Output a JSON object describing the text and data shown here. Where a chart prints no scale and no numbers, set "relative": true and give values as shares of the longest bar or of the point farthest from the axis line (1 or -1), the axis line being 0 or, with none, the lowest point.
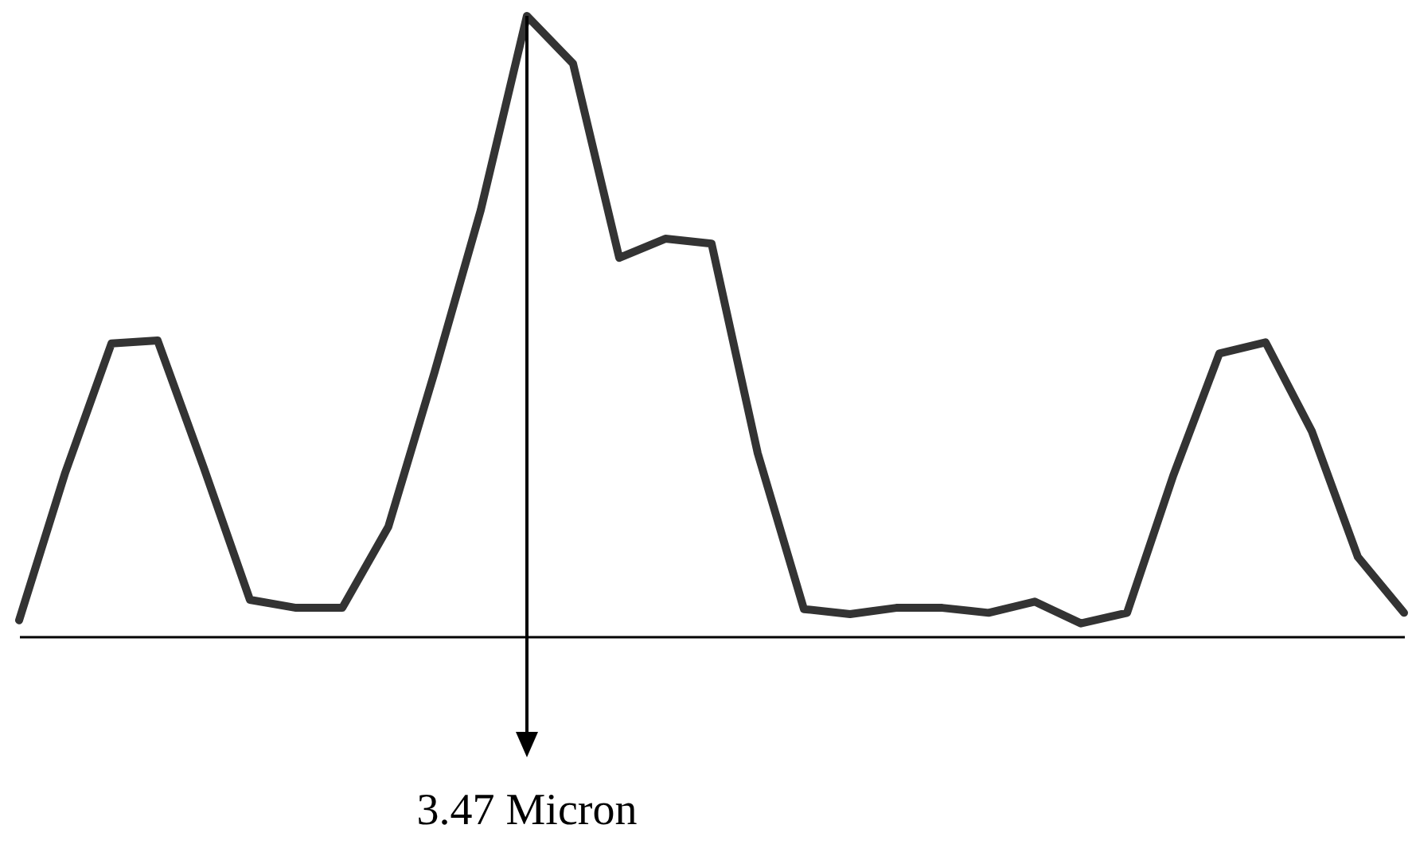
{
  "chart_data": {
    "type": "line",
    "relative": true,
    "color": "#333333",
    "categories": [
      null,
      null,
      null,
      null,
      null,
      null,
      null,
      null,
      null,
      null,
      null,
      null,
      null,
      null,
      null,
      null,
      null,
      null,
      null,
      null,
      null,
      null,
      null,
      null,
      null,
      null,
      null,
      null,
      null,
      null,
      null
    ],
    "values": [
      0.026,
      0.264,
      0.472,
      0.477,
      0.272,
      0.059,
      0.046,
      0.046,
      0.177,
      0.426,
      0.687,
      1,
      0.923,
      0.61,
      0.641,
      0.633,
      0.295,
      0.044,
      0.036,
      0.046,
      0.046,
      0.038,
      0.056,
      0.021,
      0.038,
      0.259,
      0.456,
      0.474,
      0.331,
      0.128,
      0.038
    ],
    "annotations": [
      "3.47 Micron"
    ]
  }
}
